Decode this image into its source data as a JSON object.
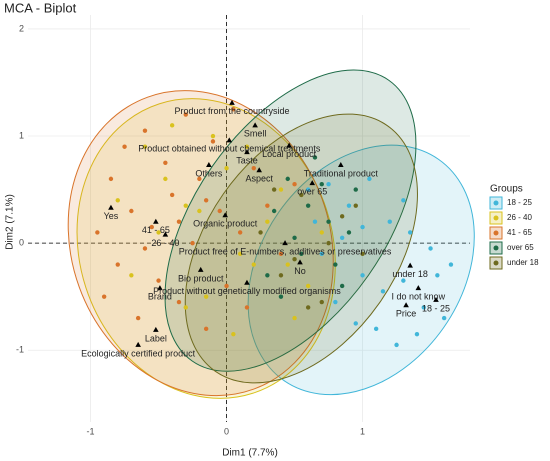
{
  "chart_data": {
    "type": "scatter",
    "title": "MCA - Biplot",
    "x_label": "Dim1 (7.7%)",
    "y_label": "Dim2 (7.1%)",
    "xlim": [
      -1.46,
      1.79
    ],
    "ylim": [
      -1.67,
      2.13
    ],
    "xticks": [
      -1,
      0,
      1
    ],
    "yticks": [
      -1,
      0,
      1,
      2
    ],
    "grid": true,
    "hline": 0,
    "vline": 0,
    "legend_title": "Groups",
    "legend": "right",
    "series": [
      {
        "name": "18 - 25",
        "color": "#41b6d9",
        "ellipse": {
          "center": [
            0.99,
            -0.25
          ],
          "radii": [
            0.74,
            1.26
          ],
          "angle": 35
        },
        "x": [
          0.6,
          0.75,
          0.9,
          1.05,
          1.2,
          1.35,
          1.5,
          1.65,
          0.7,
          0.85,
          1.0,
          1.15,
          1.3,
          1.45,
          1.6,
          0.8,
          0.95,
          1.1,
          1.25,
          1.4,
          1.55,
          0.65,
          1.0,
          1.3
        ],
        "values": [
          0.5,
          0.55,
          0.35,
          0.6,
          0.2,
          0.1,
          -0.05,
          -0.2,
          -0.1,
          0.05,
          -0.3,
          -0.45,
          -0.35,
          -0.6,
          -0.7,
          -0.55,
          -0.75,
          -0.8,
          -0.95,
          -0.85,
          -0.3,
          0.2,
          0.15,
          0.4
        ]
      },
      {
        "name": "26 - 40",
        "color": "#d9c21e",
        "ellipse": {
          "center": [
            -0.15,
            -0.05
          ],
          "radii": [
            0.93,
            1.42
          ],
          "angle": -18
        },
        "x": [
          -0.8,
          -0.6,
          -0.4,
          -0.2,
          0.0,
          0.2,
          0.4,
          0.6,
          -0.7,
          -0.5,
          -0.3,
          -0.1,
          0.1,
          0.3,
          0.5,
          0.7,
          -0.45,
          -0.15,
          0.15,
          0.45,
          -0.3,
          0.05
        ],
        "values": [
          0.4,
          0.9,
          1.1,
          0.3,
          0.7,
          -0.2,
          0.5,
          -0.4,
          -0.3,
          0.1,
          -0.6,
          1.0,
          -0.1,
          0.2,
          -0.7,
          0.1,
          0.6,
          -0.5,
          0.9,
          -0.2,
          0.35,
          -0.85
        ]
      },
      {
        "name": "41 - 65",
        "color": "#d9742b",
        "ellipse": {
          "center": [
            -0.19,
            0.0
          ],
          "radii": [
            0.95,
            1.45
          ],
          "angle": -20
        },
        "x": [
          -0.95,
          -0.9,
          -0.85,
          -0.8,
          -0.75,
          -0.7,
          -0.65,
          -0.6,
          -0.55,
          -0.5,
          -0.45,
          -0.4,
          -0.35,
          -0.3,
          -0.25,
          -0.2,
          -0.15,
          -0.1,
          -0.05,
          0.0,
          0.05,
          0.1,
          0.15,
          0.2,
          0.3,
          0.4,
          0.5,
          -0.6,
          -0.35,
          -0.15
        ],
        "values": [
          0.1,
          -0.5,
          0.6,
          -0.2,
          0.9,
          0.3,
          -0.7,
          1.05,
          0.15,
          -0.35,
          0.75,
          0.45,
          -0.55,
          1.2,
          0.0,
          0.6,
          -0.8,
          0.95,
          0.3,
          -0.4,
          1.25,
          0.1,
          -0.6,
          0.7,
          0.35,
          -0.1,
          0.55,
          -0.05,
          0.2,
          0.4
        ]
      },
      {
        "name": "over 65",
        "color": "#1e6b48",
        "ellipse": {
          "center": [
            0.47,
            0.21
          ],
          "radii": [
            0.7,
            1.6
          ],
          "angle": 35
        },
        "x": [
          0.35,
          0.45,
          0.55,
          0.65,
          0.75,
          0.85,
          0.95,
          0.4,
          0.6,
          0.8,
          0.5,
          0.7,
          0.9,
          0.3
        ],
        "values": [
          0.3,
          0.6,
          -0.1,
          0.8,
          0.2,
          -0.4,
          0.5,
          -0.5,
          0.35,
          -0.2,
          0.05,
          0.55,
          0.1,
          -0.3
        ]
      },
      {
        "name": "under 18",
        "color": "#6e6a1e",
        "ellipse": {
          "center": [
            0.55,
            -0.05
          ],
          "radii": [
            0.7,
            1.4
          ],
          "angle": 35
        },
        "x": [
          0.25,
          0.4,
          0.55,
          0.7,
          0.85,
          1.0,
          0.5,
          0.75,
          0.95,
          0.35,
          0.6
        ],
        "values": [
          0.1,
          -0.3,
          0.45,
          -0.55,
          0.25,
          -0.1,
          -0.15,
          0.0,
          0.35,
          0.5,
          -0.6
        ]
      }
    ],
    "variables": {
      "labels": [
        "Product from the countryside",
        "Smell",
        "Product obtained without chemical treatments",
        "Taste",
        "Local product",
        "Others",
        "Aspect",
        "Traditional product",
        "over 65",
        "Yes",
        "41 - 65",
        "26 - 40",
        "Organic product",
        "Product free of E-numbers, additives or preservatives",
        "No",
        "Bio product",
        "Brand",
        "Product without genetically modified organisms",
        "under 18",
        "I do not know",
        "Price",
        "18 - 25",
        "Label",
        "Ecologically certified product"
      ],
      "x": [
        0.04,
        0.21,
        0.02,
        0.15,
        0.46,
        -0.13,
        0.24,
        0.84,
        0.63,
        -0.85,
        -0.52,
        -0.45,
        -0.01,
        0.43,
        0.54,
        -0.19,
        -0.49,
        0.15,
        1.35,
        1.41,
        1.32,
        1.54,
        -0.52,
        -0.65
      ],
      "values": [
        1.31,
        1.1,
        0.96,
        0.85,
        0.91,
        0.73,
        0.68,
        0.73,
        0.56,
        0.33,
        0.2,
        0.08,
        0.26,
        0.0,
        -0.18,
        -0.25,
        -0.42,
        -0.37,
        -0.21,
        -0.42,
        -0.58,
        -0.53,
        -0.81,
        -0.95
      ]
    }
  }
}
